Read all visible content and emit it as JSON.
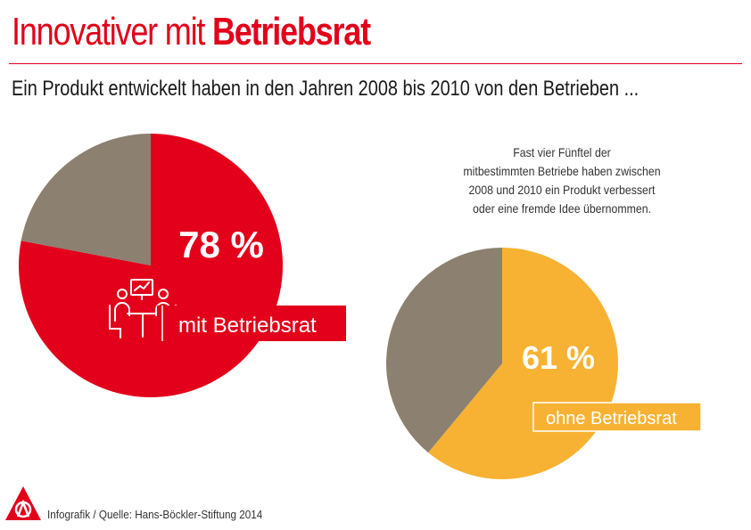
{
  "header": {
    "title_regular": "Innovativer mit",
    "title_bold": "Betriebsrat",
    "subtitle": "Ein Produkt entwickelt haben in den Jahren 2008 bis 2010 von den Betrieben ..."
  },
  "note": {
    "lines": [
      "Fast vier Fünftel der",
      "mitbestimmten Betriebe haben zwischen",
      "2008 und 2010 ein Produkt verbessert",
      "oder eine fremde Idee übernommen."
    ]
  },
  "chart_data": [
    {
      "type": "pie",
      "slices": [
        {
          "label": "mit Betriebsrat",
          "value": 78,
          "color": "#e2001a"
        },
        {
          "label": "",
          "value": 22,
          "color": "#8c8070"
        }
      ],
      "value_label": "78 %",
      "category_label": "mit Betriebsrat",
      "icon": "meeting-presentation-icon"
    },
    {
      "type": "pie",
      "slices": [
        {
          "label": "ohne Betriebsrat",
          "value": 61,
          "color": "#f7b233"
        },
        {
          "label": "",
          "value": 39,
          "color": "#8c8070"
        }
      ],
      "value_label": "61 %",
      "category_label": "ohne Betriebsrat"
    }
  ],
  "footer": {
    "source": "Infografik / Quelle:  Hans-Böckler-Stiftung 2014",
    "logo": "ig-metall-logo-icon"
  }
}
